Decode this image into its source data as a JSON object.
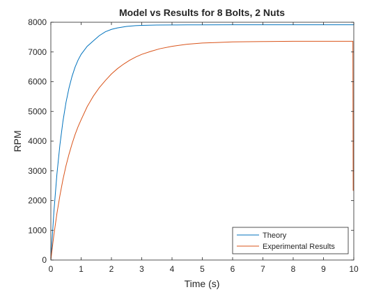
{
  "chart_data": {
    "type": "line",
    "title": "Model vs Results for 8 Bolts, 2 Nuts",
    "xlabel": "Time (s)",
    "ylabel": "RPM",
    "xlim": [
      0,
      10
    ],
    "ylim": [
      0,
      8000
    ],
    "xticks": [
      0,
      1,
      2,
      3,
      4,
      5,
      6,
      7,
      8,
      9,
      10
    ],
    "yticks": [
      0,
      1000,
      2000,
      3000,
      4000,
      5000,
      6000,
      7000,
      8000
    ],
    "grid": false,
    "legend_position": "bottom-right",
    "series": [
      {
        "name": "Theory",
        "color": "#0072BD",
        "x": [
          0,
          0.1,
          0.2,
          0.3,
          0.4,
          0.5,
          0.6,
          0.7,
          0.8,
          0.9,
          1.0,
          1.2,
          1.4,
          1.6,
          1.8,
          2.0,
          2.2,
          2.5,
          2.8,
          3.0,
          3.5,
          4.0,
          4.5,
          5.0,
          6.0,
          7.0,
          8.0,
          9.0,
          10.0
        ],
        "y": [
          0,
          1610,
          2880,
          3880,
          4670,
          5300,
          5790,
          6180,
          6490,
          6730,
          6920,
          7190,
          7370,
          7550,
          7680,
          7760,
          7810,
          7860,
          7885,
          7895,
          7905,
          7910,
          7912,
          7913,
          7914,
          7915,
          7915,
          7915,
          7915
        ]
      },
      {
        "name": "Experimental Results",
        "color": "#D95319",
        "x": [
          0,
          0.1,
          0.2,
          0.3,
          0.4,
          0.5,
          0.6,
          0.7,
          0.8,
          0.9,
          1.0,
          1.2,
          1.4,
          1.6,
          1.8,
          2.0,
          2.2,
          2.4,
          2.6,
          2.8,
          3.0,
          3.3,
          3.6,
          4.0,
          4.5,
          5.0,
          5.5,
          6.0,
          7.0,
          8.0,
          9.0,
          9.9,
          9.97,
          9.98
        ],
        "y": [
          0,
          840,
          1560,
          2170,
          2710,
          3170,
          3560,
          3910,
          4220,
          4490,
          4720,
          5160,
          5510,
          5800,
          6040,
          6260,
          6440,
          6590,
          6720,
          6830,
          6920,
          7020,
          7110,
          7190,
          7260,
          7300,
          7320,
          7340,
          7350,
          7360,
          7360,
          7360,
          7360,
          2330
        ]
      }
    ]
  }
}
